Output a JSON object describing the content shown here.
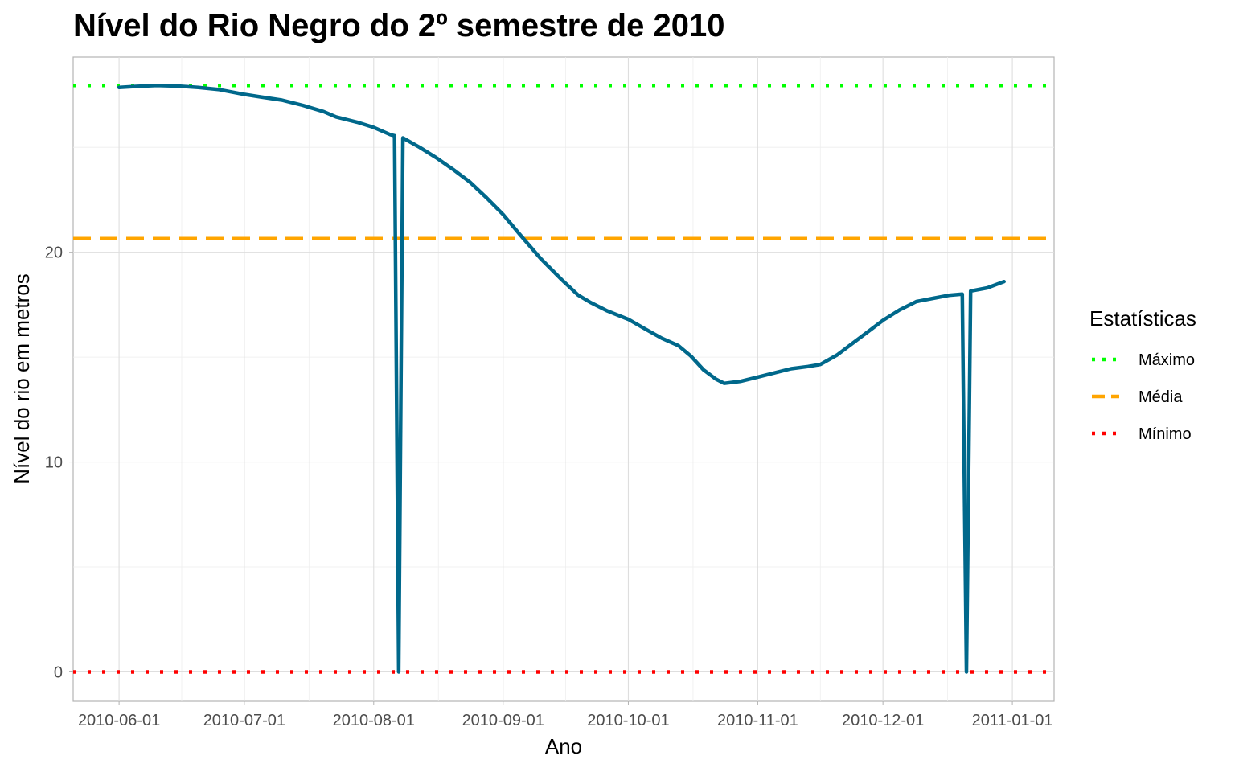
{
  "chart_data": {
    "type": "line",
    "title": "Nível do Rio Negro do 2º semestre de 2010",
    "xlabel": "Ano",
    "ylabel": "Nível do rio em metros",
    "x_ticks": [
      "2010-06-01",
      "2010-07-01",
      "2010-08-01",
      "2010-09-01",
      "2010-10-01",
      "2010-11-01",
      "2010-12-01",
      "2011-01-01"
    ],
    "y_ticks": [
      0,
      10,
      20
    ],
    "xlim": [
      "2010-05-21",
      "2011-01-11"
    ],
    "ylim": [
      -1.4,
      29.3
    ],
    "grid": true,
    "legend": {
      "title": "Estatísticas",
      "position": "right",
      "entries": [
        {
          "label": "Máximo",
          "color": "#00ff00",
          "style": "dotted"
        },
        {
          "label": "Média",
          "color": "#ffa500",
          "style": "dashed"
        },
        {
          "label": "Mínimo",
          "color": "#ff0000",
          "style": "dotted"
        }
      ]
    },
    "reference_lines": [
      {
        "name": "Máximo",
        "y": 27.95,
        "color": "#00ff00"
      },
      {
        "name": "Média",
        "y": 20.65,
        "color": "#ffa500"
      },
      {
        "name": "Mínimo",
        "y": 0,
        "color": "#ff0000"
      }
    ],
    "series": [
      {
        "color": "#00688b",
        "points": [
          [
            "2010-06-01",
            27.85
          ],
          [
            "2010-06-05",
            27.9
          ],
          [
            "2010-06-10",
            27.95
          ],
          [
            "2010-06-15",
            27.92
          ],
          [
            "2010-06-20",
            27.85
          ],
          [
            "2010-06-25",
            27.75
          ],
          [
            "2010-07-01",
            27.52
          ],
          [
            "2010-07-05",
            27.4
          ],
          [
            "2010-07-10",
            27.25
          ],
          [
            "2010-07-15",
            27.0
          ],
          [
            "2010-07-20",
            26.7
          ],
          [
            "2010-07-23",
            26.45
          ],
          [
            "2010-07-28",
            26.2
          ],
          [
            "2010-08-01",
            25.95
          ],
          [
            "2010-08-05",
            25.6
          ],
          [
            "2010-08-06",
            25.55
          ],
          [
            "2010-08-07",
            0
          ],
          [
            "2010-08-08",
            25.45
          ],
          [
            "2010-08-12",
            25.0
          ],
          [
            "2010-08-16",
            24.5
          ],
          [
            "2010-08-20",
            23.95
          ],
          [
            "2010-08-24",
            23.35
          ],
          [
            "2010-08-28",
            22.6
          ],
          [
            "2010-09-01",
            21.8
          ],
          [
            "2010-09-05",
            20.85
          ],
          [
            "2010-09-10",
            19.7
          ],
          [
            "2010-09-15",
            18.7
          ],
          [
            "2010-09-19",
            17.95
          ],
          [
            "2010-09-22",
            17.6
          ],
          [
            "2010-09-26",
            17.2
          ],
          [
            "2010-10-01",
            16.8
          ],
          [
            "2010-10-05",
            16.35
          ],
          [
            "2010-10-09",
            15.9
          ],
          [
            "2010-10-13",
            15.55
          ],
          [
            "2010-10-16",
            15.05
          ],
          [
            "2010-10-19",
            14.4
          ],
          [
            "2010-10-22",
            13.95
          ],
          [
            "2010-10-24",
            13.75
          ],
          [
            "2010-10-28",
            13.85
          ],
          [
            "2010-11-01",
            14.05
          ],
          [
            "2010-11-05",
            14.25
          ],
          [
            "2010-11-09",
            14.45
          ],
          [
            "2010-11-13",
            14.55
          ],
          [
            "2010-11-16",
            14.65
          ],
          [
            "2010-11-20",
            15.1
          ],
          [
            "2010-11-24",
            15.7
          ],
          [
            "2010-11-28",
            16.3
          ],
          [
            "2010-12-01",
            16.75
          ],
          [
            "2010-12-05",
            17.25
          ],
          [
            "2010-12-09",
            17.65
          ],
          [
            "2010-12-13",
            17.8
          ],
          [
            "2010-12-17",
            17.95
          ],
          [
            "2010-12-20",
            18.0
          ],
          [
            "2010-12-21",
            0
          ],
          [
            "2010-12-22",
            18.15
          ],
          [
            "2010-12-26",
            18.3
          ],
          [
            "2010-12-30",
            18.6
          ]
        ]
      }
    ]
  }
}
